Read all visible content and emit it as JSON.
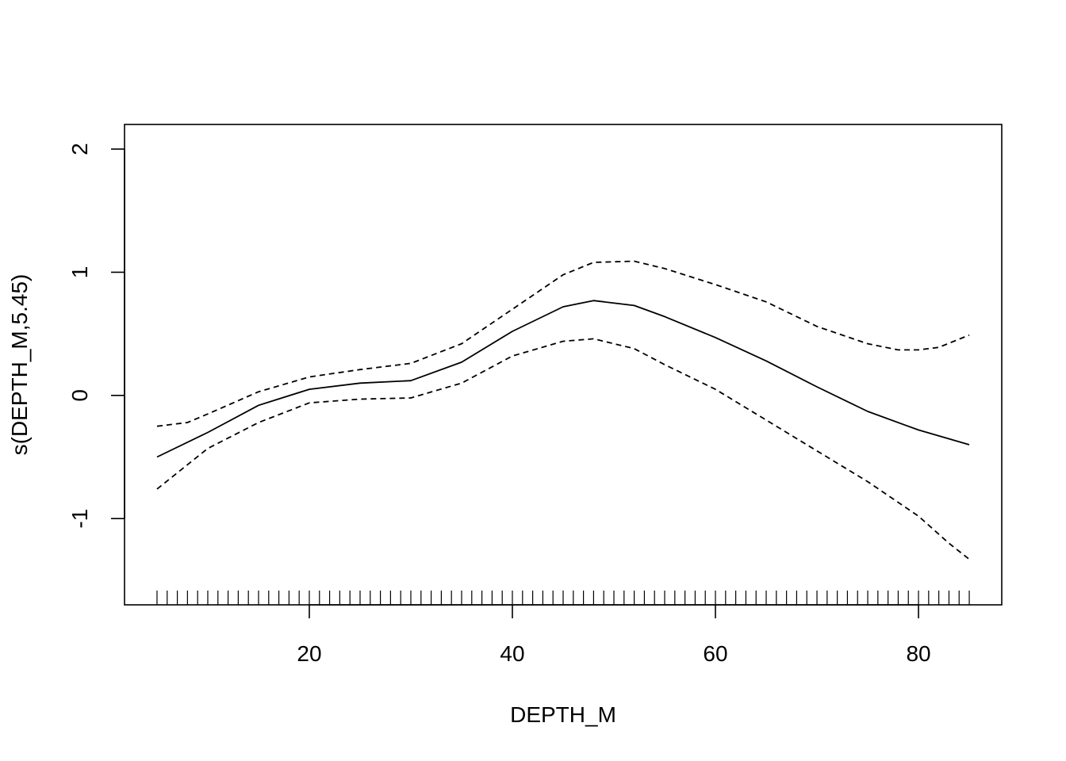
{
  "chart_data": {
    "type": "line",
    "title": "",
    "xlabel": "DEPTH_M",
    "ylabel": "s(DEPTH_M,5.45)",
    "xlim": [
      1.8,
      88.2
    ],
    "ylim": [
      -1.7,
      2.2
    ],
    "xticks": [
      20,
      40,
      60,
      80
    ],
    "yticks": [
      -1,
      0,
      1,
      2
    ],
    "grid": false,
    "legend": "none",
    "series": [
      {
        "style": "solid",
        "x": [
          5,
          10,
          15,
          20,
          25,
          30,
          35,
          40,
          45,
          48,
          52,
          55,
          60,
          65,
          70,
          75,
          80,
          85
        ],
        "y": [
          -0.5,
          -0.3,
          -0.08,
          0.05,
          0.1,
          0.12,
          0.27,
          0.52,
          0.72,
          0.77,
          0.73,
          0.64,
          0.47,
          0.28,
          0.07,
          -0.13,
          -0.28,
          -0.4
        ]
      },
      {
        "style": "dashed",
        "x": [
          5,
          8,
          10,
          15,
          20,
          25,
          30,
          35,
          40,
          45,
          48,
          52,
          55,
          60,
          65,
          70,
          75,
          78,
          80,
          82,
          85
        ],
        "y": [
          -0.25,
          -0.22,
          -0.15,
          0.03,
          0.15,
          0.21,
          0.26,
          0.42,
          0.7,
          0.98,
          1.08,
          1.09,
          1.03,
          0.9,
          0.76,
          0.56,
          0.42,
          0.37,
          0.37,
          0.39,
          0.49
        ]
      },
      {
        "style": "dashed",
        "x": [
          5,
          10,
          15,
          20,
          25,
          30,
          35,
          40,
          45,
          48,
          52,
          55,
          60,
          65,
          70,
          75,
          80,
          83,
          85
        ],
        "y": [
          -0.76,
          -0.43,
          -0.22,
          -0.06,
          -0.03,
          -0.02,
          0.1,
          0.32,
          0.44,
          0.46,
          0.38,
          0.25,
          0.05,
          -0.2,
          -0.45,
          -0.7,
          -0.98,
          -1.2,
          -1.33
        ]
      }
    ],
    "rug": [
      5,
      6,
      7,
      8,
      9,
      10,
      11,
      12,
      13,
      14,
      15,
      16,
      17,
      18,
      19,
      20,
      21,
      22,
      23,
      24,
      25,
      26,
      27,
      28,
      29,
      30,
      31,
      32,
      33,
      34,
      35,
      36,
      37,
      38,
      39,
      40,
      41,
      42,
      43,
      44,
      45,
      46,
      47,
      48,
      49,
      50,
      51,
      52,
      53,
      54,
      55,
      56,
      57,
      58,
      59,
      60,
      61,
      62,
      63,
      64,
      65,
      66,
      67,
      68,
      69,
      70,
      71,
      72,
      73,
      74,
      75,
      76,
      77,
      78,
      79,
      80,
      81,
      82,
      83,
      84,
      85
    ]
  }
}
